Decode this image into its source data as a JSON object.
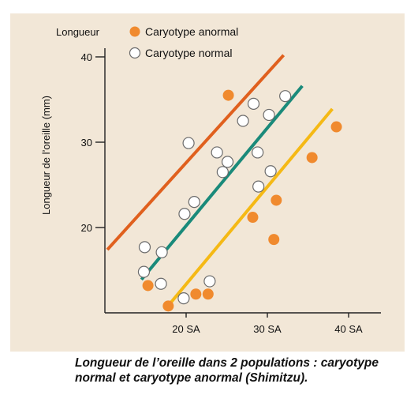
{
  "caption": "Longueur de l’oreille dans 2 populations : caryotype normal et caryotype anormal (Shimitzu).",
  "chart_data": {
    "type": "scatter",
    "ylabel": "Longueur de l’oreille (mm)",
    "ylabel_top": "Longueur",
    "xlim": [
      10,
      42
    ],
    "ylim": [
      10,
      42
    ],
    "x_ticks": [
      {
        "value": 20,
        "label": "20 SA"
      },
      {
        "value": 30,
        "label": "30 SA"
      },
      {
        "value": 40,
        "label": "40 SA"
      }
    ],
    "y_ticks": [
      {
        "value": 20,
        "label": "20"
      },
      {
        "value": 30,
        "label": "30"
      },
      {
        "value": 40,
        "label": "40"
      }
    ],
    "legend_position": "top",
    "series": [
      {
        "name": "Caryotype anormal",
        "marker": "filled-circle",
        "color": "#f08a2e",
        "points": [
          {
            "x": 15.3,
            "y": 13.2
          },
          {
            "x": 17.8,
            "y": 10.8
          },
          {
            "x": 21.2,
            "y": 12.2
          },
          {
            "x": 22.7,
            "y": 12.2
          },
          {
            "x": 25.2,
            "y": 35.5
          },
          {
            "x": 28.2,
            "y": 21.2
          },
          {
            "x": 30.8,
            "y": 18.6
          },
          {
            "x": 31.1,
            "y": 23.2
          },
          {
            "x": 35.5,
            "y": 28.2
          },
          {
            "x": 38.5,
            "y": 31.8
          }
        ]
      },
      {
        "name": "Caryotype normal",
        "marker": "open-circle",
        "color": "#ffffff",
        "points": [
          {
            "x": 14.8,
            "y": 14.8
          },
          {
            "x": 14.9,
            "y": 17.7
          },
          {
            "x": 16.9,
            "y": 13.4
          },
          {
            "x": 17.0,
            "y": 17.1
          },
          {
            "x": 19.7,
            "y": 11.7
          },
          {
            "x": 19.8,
            "y": 21.6
          },
          {
            "x": 20.3,
            "y": 29.9
          },
          {
            "x": 21.0,
            "y": 23.0
          },
          {
            "x": 22.9,
            "y": 13.7
          },
          {
            "x": 23.8,
            "y": 28.8
          },
          {
            "x": 24.5,
            "y": 26.5
          },
          {
            "x": 25.1,
            "y": 27.7
          },
          {
            "x": 27.0,
            "y": 32.5
          },
          {
            "x": 28.3,
            "y": 34.5
          },
          {
            "x": 28.8,
            "y": 28.8
          },
          {
            "x": 28.9,
            "y": 24.8
          },
          {
            "x": 30.2,
            "y": 33.2
          },
          {
            "x": 30.4,
            "y": 26.6
          },
          {
            "x": 32.2,
            "y": 35.4
          }
        ]
      }
    ],
    "trend_lines": [
      {
        "color": "#e0601e",
        "start": {
          "x": 10.3,
          "y": 17.4
        },
        "end": {
          "x": 32.0,
          "y": 40.2
        }
      },
      {
        "color": "#1a8a7a",
        "start": {
          "x": 14.5,
          "y": 13.9
        },
        "end": {
          "x": 34.3,
          "y": 36.6
        }
      },
      {
        "color": "#f5b915",
        "start": {
          "x": 17.5,
          "y": 10.5
        },
        "end": {
          "x": 38.0,
          "y": 33.9
        }
      }
    ]
  }
}
